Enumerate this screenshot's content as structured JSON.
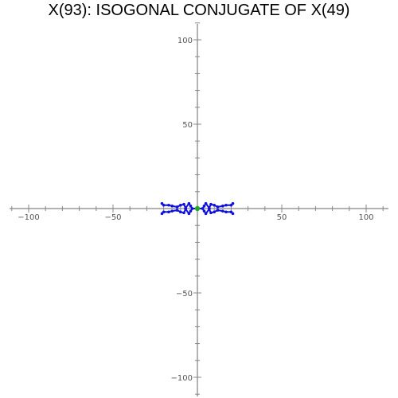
{
  "chart_data": {
    "type": "scatter",
    "title": "X(93): ISOGONAL CONJUGATE OF X(49)",
    "xlabel": "",
    "ylabel": "",
    "xlim": [
      -112,
      112
    ],
    "ylim": [
      -112,
      112
    ],
    "x_ticks": [
      -100,
      -50,
      50,
      100
    ],
    "x_tick_labels": [
      "−100",
      "−50",
      "50",
      "100"
    ],
    "y_ticks": [
      100,
      50,
      -50,
      -100
    ],
    "y_tick_labels": [
      "100",
      "50",
      "−50",
      "−100"
    ],
    "grid": false,
    "series": [
      {
        "color": "#1010e0",
        "values": [
          [
            -21,
            3
          ],
          [
            -17,
            2
          ],
          [
            -12,
            1
          ],
          [
            -7,
            0.4
          ],
          [
            -3,
            0
          ],
          [
            3,
            0
          ],
          [
            7,
            0.4
          ],
          [
            12,
            1
          ],
          [
            17,
            2
          ],
          [
            21,
            3
          ],
          [
            -21,
            -3
          ],
          [
            -17,
            -2
          ],
          [
            -12,
            -1
          ],
          [
            -7,
            -0.4
          ],
          [
            7,
            -0.4
          ],
          [
            12,
            -1
          ],
          [
            17,
            -2
          ],
          [
            21,
            -3
          ],
          [
            -20,
            2
          ],
          [
            -15,
            1.5
          ],
          [
            -10,
            2
          ],
          [
            -5,
            3
          ],
          [
            5,
            3
          ],
          [
            10,
            2
          ],
          [
            15,
            1.5
          ],
          [
            20,
            2
          ],
          [
            -20,
            -2
          ],
          [
            -15,
            -1.5
          ],
          [
            -10,
            -2
          ],
          [
            -5,
            -3
          ],
          [
            5,
            -3
          ],
          [
            10,
            -2
          ],
          [
            15,
            -1.5
          ],
          [
            20,
            -2
          ],
          [
            -8,
            2.5
          ],
          [
            -4,
            1.5
          ],
          [
            4,
            1.5
          ],
          [
            8,
            2.5
          ],
          [
            -8,
            -2.5
          ],
          [
            -4,
            -1.5
          ],
          [
            4,
            -1.5
          ],
          [
            8,
            -2.5
          ]
        ]
      }
    ],
    "highlight_point": {
      "x": 0,
      "y": 0,
      "color": "#22aa22"
    }
  }
}
